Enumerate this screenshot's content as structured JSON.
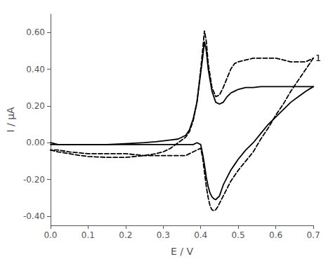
{
  "chart_data": {
    "type": "line",
    "xlabel": "E / V",
    "ylabel": "I / μA",
    "xlim": [
      0.0,
      0.7
    ],
    "ylim": [
      -0.45,
      0.7
    ],
    "xticks": [
      {
        "value": 0.0,
        "label": "0.0"
      },
      {
        "value": 0.1,
        "label": "0.1"
      },
      {
        "value": 0.2,
        "label": "0.2"
      },
      {
        "value": 0.3,
        "label": "0.3"
      },
      {
        "value": 0.4,
        "label": "0.4"
      },
      {
        "value": 0.5,
        "label": "0.5"
      },
      {
        "value": 0.6,
        "label": "0.6"
      },
      {
        "value": 0.7,
        "label": "0.7"
      }
    ],
    "yticks": [
      {
        "value": -0.4,
        "label": "-0.40"
      },
      {
        "value": -0.2,
        "label": "-0.20"
      },
      {
        "value": 0.0,
        "label": "0.00"
      },
      {
        "value": 0.2,
        "label": "0.20"
      },
      {
        "value": 0.4,
        "label": "0.40"
      },
      {
        "value": 0.6,
        "label": "0.60"
      }
    ],
    "grid": false,
    "annotations": [
      {
        "text": "1",
        "x": 0.705,
        "y": 0.46
      }
    ],
    "series": [
      {
        "color": "black",
        "line_style": "solid",
        "x": [
          0.0,
          0.02,
          0.05,
          0.08,
          0.1,
          0.15,
          0.2,
          0.25,
          0.28,
          0.3,
          0.32,
          0.34,
          0.36,
          0.37,
          0.38,
          0.39,
          0.4,
          0.405,
          0.41,
          0.415,
          0.42,
          0.43,
          0.44,
          0.45,
          0.46,
          0.47,
          0.48,
          0.49,
          0.5,
          0.52,
          0.54,
          0.56,
          0.58,
          0.6,
          0.62,
          0.64,
          0.66,
          0.68,
          0.7
        ],
        "values": [
          0.0,
          -0.01,
          -0.01,
          -0.01,
          -0.01,
          -0.01,
          -0.005,
          0.0,
          0.005,
          0.01,
          0.015,
          0.02,
          0.04,
          0.07,
          0.13,
          0.22,
          0.38,
          0.46,
          0.55,
          0.5,
          0.4,
          0.28,
          0.22,
          0.21,
          0.22,
          0.25,
          0.27,
          0.28,
          0.29,
          0.3,
          0.3,
          0.305,
          0.305,
          0.305,
          0.305,
          0.305,
          0.305,
          0.305,
          0.305
        ]
      },
      {
        "color": "black",
        "line_style": "solid",
        "x": [
          0.7,
          0.68,
          0.66,
          0.64,
          0.62,
          0.6,
          0.58,
          0.56,
          0.54,
          0.52,
          0.5,
          0.49,
          0.48,
          0.47,
          0.46,
          0.455,
          0.45,
          0.445,
          0.44,
          0.435,
          0.43,
          0.425,
          0.42,
          0.415,
          0.41,
          0.405,
          0.4,
          0.39,
          0.38,
          0.37,
          0.36,
          0.34,
          0.32,
          0.3,
          0.28,
          0.25,
          0.2,
          0.15,
          0.1,
          0.05,
          0.02,
          0.0
        ],
        "values": [
          0.305,
          0.28,
          0.25,
          0.22,
          0.18,
          0.14,
          0.1,
          0.05,
          0.0,
          -0.04,
          -0.09,
          -0.12,
          -0.15,
          -0.19,
          -0.23,
          -0.26,
          -0.29,
          -0.3,
          -0.31,
          -0.305,
          -0.295,
          -0.275,
          -0.24,
          -0.19,
          -0.12,
          -0.06,
          -0.01,
          0.0,
          -0.01,
          -0.01,
          -0.01,
          -0.01,
          -0.01,
          -0.01,
          -0.01,
          -0.01,
          -0.01,
          -0.01,
          -0.01,
          -0.01,
          -0.01,
          -0.01
        ]
      },
      {
        "color": "black",
        "line_style": "dashed",
        "x": [
          0.0,
          0.02,
          0.05,
          0.08,
          0.1,
          0.15,
          0.2,
          0.25,
          0.28,
          0.3,
          0.32,
          0.34,
          0.36,
          0.37,
          0.38,
          0.39,
          0.4,
          0.405,
          0.41,
          0.415,
          0.42,
          0.43,
          0.44,
          0.45,
          0.46,
          0.47,
          0.48,
          0.49,
          0.5,
          0.52,
          0.54,
          0.56,
          0.58,
          0.6,
          0.62,
          0.64,
          0.66,
          0.68,
          0.7
        ],
        "values": [
          -0.04,
          -0.05,
          -0.06,
          -0.07,
          -0.075,
          -0.08,
          -0.08,
          -0.07,
          -0.06,
          -0.05,
          -0.03,
          0.0,
          0.03,
          0.06,
          0.12,
          0.22,
          0.4,
          0.5,
          0.61,
          0.55,
          0.43,
          0.3,
          0.25,
          0.26,
          0.3,
          0.35,
          0.4,
          0.43,
          0.44,
          0.45,
          0.46,
          0.46,
          0.46,
          0.46,
          0.45,
          0.44,
          0.44,
          0.44,
          0.46
        ]
      },
      {
        "color": "black",
        "line_style": "dashed",
        "x": [
          0.7,
          0.68,
          0.66,
          0.64,
          0.62,
          0.6,
          0.58,
          0.56,
          0.54,
          0.52,
          0.5,
          0.49,
          0.48,
          0.47,
          0.46,
          0.455,
          0.45,
          0.445,
          0.44,
          0.435,
          0.43,
          0.425,
          0.42,
          0.415,
          0.41,
          0.405,
          0.4,
          0.39,
          0.38,
          0.37,
          0.36,
          0.34,
          0.32,
          0.3,
          0.28,
          0.25,
          0.2,
          0.15,
          0.1,
          0.05,
          0.02,
          0.0
        ],
        "values": [
          0.46,
          0.4,
          0.34,
          0.28,
          0.21,
          0.15,
          0.08,
          0.02,
          -0.05,
          -0.1,
          -0.15,
          -0.18,
          -0.21,
          -0.25,
          -0.29,
          -0.31,
          -0.33,
          -0.35,
          -0.365,
          -0.37,
          -0.365,
          -0.345,
          -0.3,
          -0.24,
          -0.16,
          -0.08,
          -0.03,
          -0.04,
          -0.05,
          -0.06,
          -0.07,
          -0.07,
          -0.07,
          -0.07,
          -0.07,
          -0.07,
          -0.06,
          -0.06,
          -0.06,
          -0.05,
          -0.04,
          -0.04
        ]
      }
    ]
  }
}
